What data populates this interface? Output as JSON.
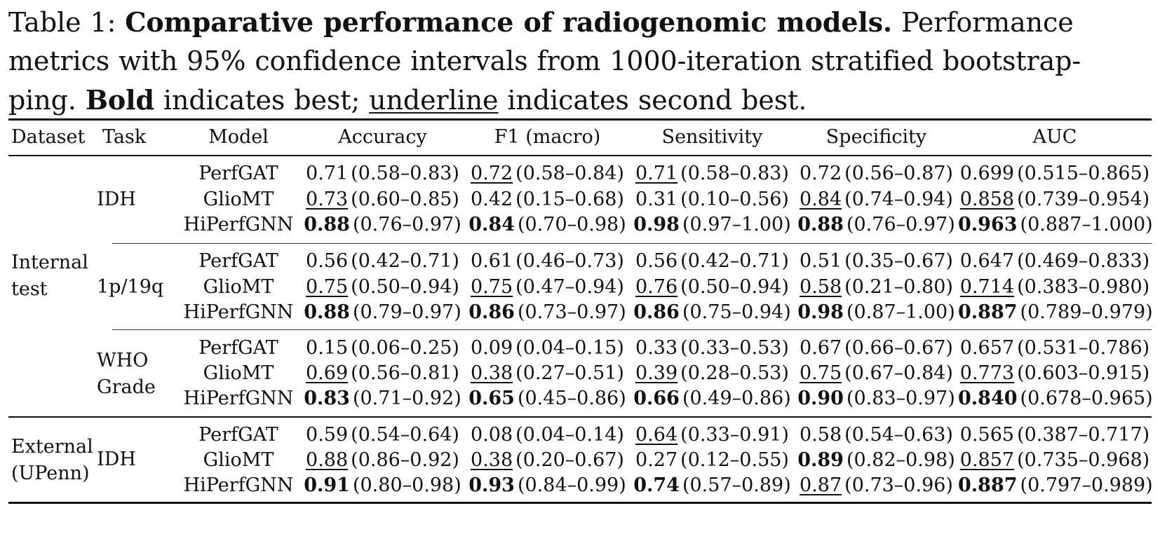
{
  "caption": {
    "prefix": "Table 1: ",
    "title": "Comparative performance of radiogenomic models.",
    "line1_rest": " Performance",
    "line2": "metrics with 95% confidence intervals from 1000-iteration stratified bootstrap-",
    "line3_a": "ping. ",
    "bold_word": "Bold",
    "line3_b": " indicates best; ",
    "underline_word": "underline",
    "line3_c": " indicates second best."
  },
  "headers": {
    "dataset": "Dataset",
    "task": "Task",
    "model": "Model",
    "accuracy": "Accuracy",
    "f1": "F1 (macro)",
    "sensitivity": "Sensitivity",
    "specificity": "Specificity",
    "auc": "AUC"
  },
  "groups": [
    {
      "dataset_line1": "Internal",
      "dataset_line2": "test"
    },
    {
      "dataset_line1": "External",
      "dataset_line2": "(UPenn)"
    }
  ],
  "tasks": [
    {
      "line1": "IDH",
      "line2": ""
    },
    {
      "line1": "1p/19q",
      "line2": ""
    },
    {
      "line1": "WHO",
      "line2": "Grade"
    },
    {
      "line1": "IDH",
      "line2": ""
    }
  ],
  "rows": [
    {
      "model": "PerfGAT",
      "acc": {
        "v": "0.71",
        "ci": "(0.58–0.83)",
        "mark": ""
      },
      "f1": {
        "v": "0.72",
        "ci": "(0.58–0.84)",
        "mark": "second"
      },
      "sen": {
        "v": "0.71",
        "ci": "(0.58–0.83)",
        "mark": "second"
      },
      "spe": {
        "v": "0.72",
        "ci": "(0.56–0.87)",
        "mark": ""
      },
      "auc": {
        "v": "0.699",
        "ci": "(0.515–0.865)",
        "mark": ""
      }
    },
    {
      "model": "GlioMT",
      "acc": {
        "v": "0.73",
        "ci": "(0.60–0.85)",
        "mark": "second"
      },
      "f1": {
        "v": "0.42",
        "ci": "(0.15–0.68)",
        "mark": ""
      },
      "sen": {
        "v": "0.31",
        "ci": "(0.10–0.56)",
        "mark": ""
      },
      "spe": {
        "v": "0.84",
        "ci": "(0.74–0.94)",
        "mark": "second"
      },
      "auc": {
        "v": "0.858",
        "ci": "(0.739–0.954)",
        "mark": "second"
      }
    },
    {
      "model": "HiPerfGNN",
      "acc": {
        "v": "0.88",
        "ci": "(0.76–0.97)",
        "mark": "best"
      },
      "f1": {
        "v": "0.84",
        "ci": "(0.70–0.98)",
        "mark": "best"
      },
      "sen": {
        "v": "0.98",
        "ci": "(0.97–1.00)",
        "mark": "best"
      },
      "spe": {
        "v": "0.88",
        "ci": "(0.76–0.97)",
        "mark": "best"
      },
      "auc": {
        "v": "0.963",
        "ci": "(0.887–1.000)",
        "mark": "best"
      }
    },
    {
      "model": "PerfGAT",
      "acc": {
        "v": "0.56",
        "ci": "(0.42–0.71)",
        "mark": ""
      },
      "f1": {
        "v": "0.61",
        "ci": "(0.46–0.73)",
        "mark": ""
      },
      "sen": {
        "v": "0.56",
        "ci": "(0.42–0.71)",
        "mark": ""
      },
      "spe": {
        "v": "0.51",
        "ci": "(0.35–0.67)",
        "mark": ""
      },
      "auc": {
        "v": "0.647",
        "ci": "(0.469–0.833)",
        "mark": ""
      }
    },
    {
      "model": "GlioMT",
      "acc": {
        "v": "0.75",
        "ci": "(0.50–0.94)",
        "mark": "second"
      },
      "f1": {
        "v": "0.75",
        "ci": "(0.47–0.94)",
        "mark": "second"
      },
      "sen": {
        "v": "0.76",
        "ci": "(0.50–0.94)",
        "mark": "second"
      },
      "spe": {
        "v": "0.58",
        "ci": "(0.21–0.80)",
        "mark": "second"
      },
      "auc": {
        "v": "0.714",
        "ci": "(0.383–0.980)",
        "mark": "second"
      }
    },
    {
      "model": "HiPerfGNN",
      "acc": {
        "v": "0.88",
        "ci": "(0.79–0.97)",
        "mark": "best"
      },
      "f1": {
        "v": "0.86",
        "ci": "(0.73–0.97)",
        "mark": "best"
      },
      "sen": {
        "v": "0.86",
        "ci": "(0.75–0.94)",
        "mark": "best"
      },
      "spe": {
        "v": "0.98",
        "ci": "(0.87–1.00)",
        "mark": "best"
      },
      "auc": {
        "v": "0.887",
        "ci": "(0.789–0.979)",
        "mark": "best"
      }
    },
    {
      "model": "PerfGAT",
      "acc": {
        "v": "0.15",
        "ci": "(0.06–0.25)",
        "mark": ""
      },
      "f1": {
        "v": "0.09",
        "ci": "(0.04–0.15)",
        "mark": ""
      },
      "sen": {
        "v": "0.33",
        "ci": "(0.33–0.53)",
        "mark": ""
      },
      "spe": {
        "v": "0.67",
        "ci": "(0.66–0.67)",
        "mark": ""
      },
      "auc": {
        "v": "0.657",
        "ci": "(0.531–0.786)",
        "mark": ""
      }
    },
    {
      "model": "GlioMT",
      "acc": {
        "v": "0.69",
        "ci": "(0.56–0.81)",
        "mark": "second"
      },
      "f1": {
        "v": "0.38",
        "ci": "(0.27–0.51)",
        "mark": "second"
      },
      "sen": {
        "v": "0.39",
        "ci": "(0.28–0.53)",
        "mark": "second"
      },
      "spe": {
        "v": "0.75",
        "ci": "(0.67–0.84)",
        "mark": "second"
      },
      "auc": {
        "v": "0.773",
        "ci": "(0.603–0.915)",
        "mark": "second"
      }
    },
    {
      "model": "HiPerfGNN",
      "acc": {
        "v": "0.83",
        "ci": "(0.71–0.92)",
        "mark": "best"
      },
      "f1": {
        "v": "0.65",
        "ci": "(0.45–0.86)",
        "mark": "best"
      },
      "sen": {
        "v": "0.66",
        "ci": "(0.49–0.86)",
        "mark": "best"
      },
      "spe": {
        "v": "0.90",
        "ci": "(0.83–0.97)",
        "mark": "best"
      },
      "auc": {
        "v": "0.840",
        "ci": "(0.678–0.965)",
        "mark": "best"
      }
    },
    {
      "model": "PerfGAT",
      "acc": {
        "v": "0.59",
        "ci": "(0.54–0.64)",
        "mark": ""
      },
      "f1": {
        "v": "0.08",
        "ci": "(0.04–0.14)",
        "mark": ""
      },
      "sen": {
        "v": "0.64",
        "ci": "(0.33–0.91)",
        "mark": "second"
      },
      "spe": {
        "v": "0.58",
        "ci": "(0.54–0.63)",
        "mark": ""
      },
      "auc": {
        "v": "0.565",
        "ci": "(0.387–0.717)",
        "mark": ""
      }
    },
    {
      "model": "GlioMT",
      "acc": {
        "v": "0.88",
        "ci": "(0.86–0.92)",
        "mark": "second"
      },
      "f1": {
        "v": "0.38",
        "ci": "(0.20–0.67)",
        "mark": "second"
      },
      "sen": {
        "v": "0.27",
        "ci": "(0.12–0.55)",
        "mark": ""
      },
      "spe": {
        "v": "0.89",
        "ci": "(0.82–0.98)",
        "mark": "best"
      },
      "auc": {
        "v": "0.857",
        "ci": "(0.735–0.968)",
        "mark": "second"
      }
    },
    {
      "model": "HiPerfGNN",
      "acc": {
        "v": "0.91",
        "ci": "(0.80–0.98)",
        "mark": "best"
      },
      "f1": {
        "v": "0.93",
        "ci": "(0.84–0.99)",
        "mark": "best"
      },
      "sen": {
        "v": "0.74",
        "ci": "(0.57–0.89)",
        "mark": "best"
      },
      "spe": {
        "v": "0.87",
        "ci": "(0.73–0.96)",
        "mark": "second"
      },
      "auc": {
        "v": "0.887",
        "ci": "(0.797–0.989)",
        "mark": "best"
      }
    }
  ]
}
